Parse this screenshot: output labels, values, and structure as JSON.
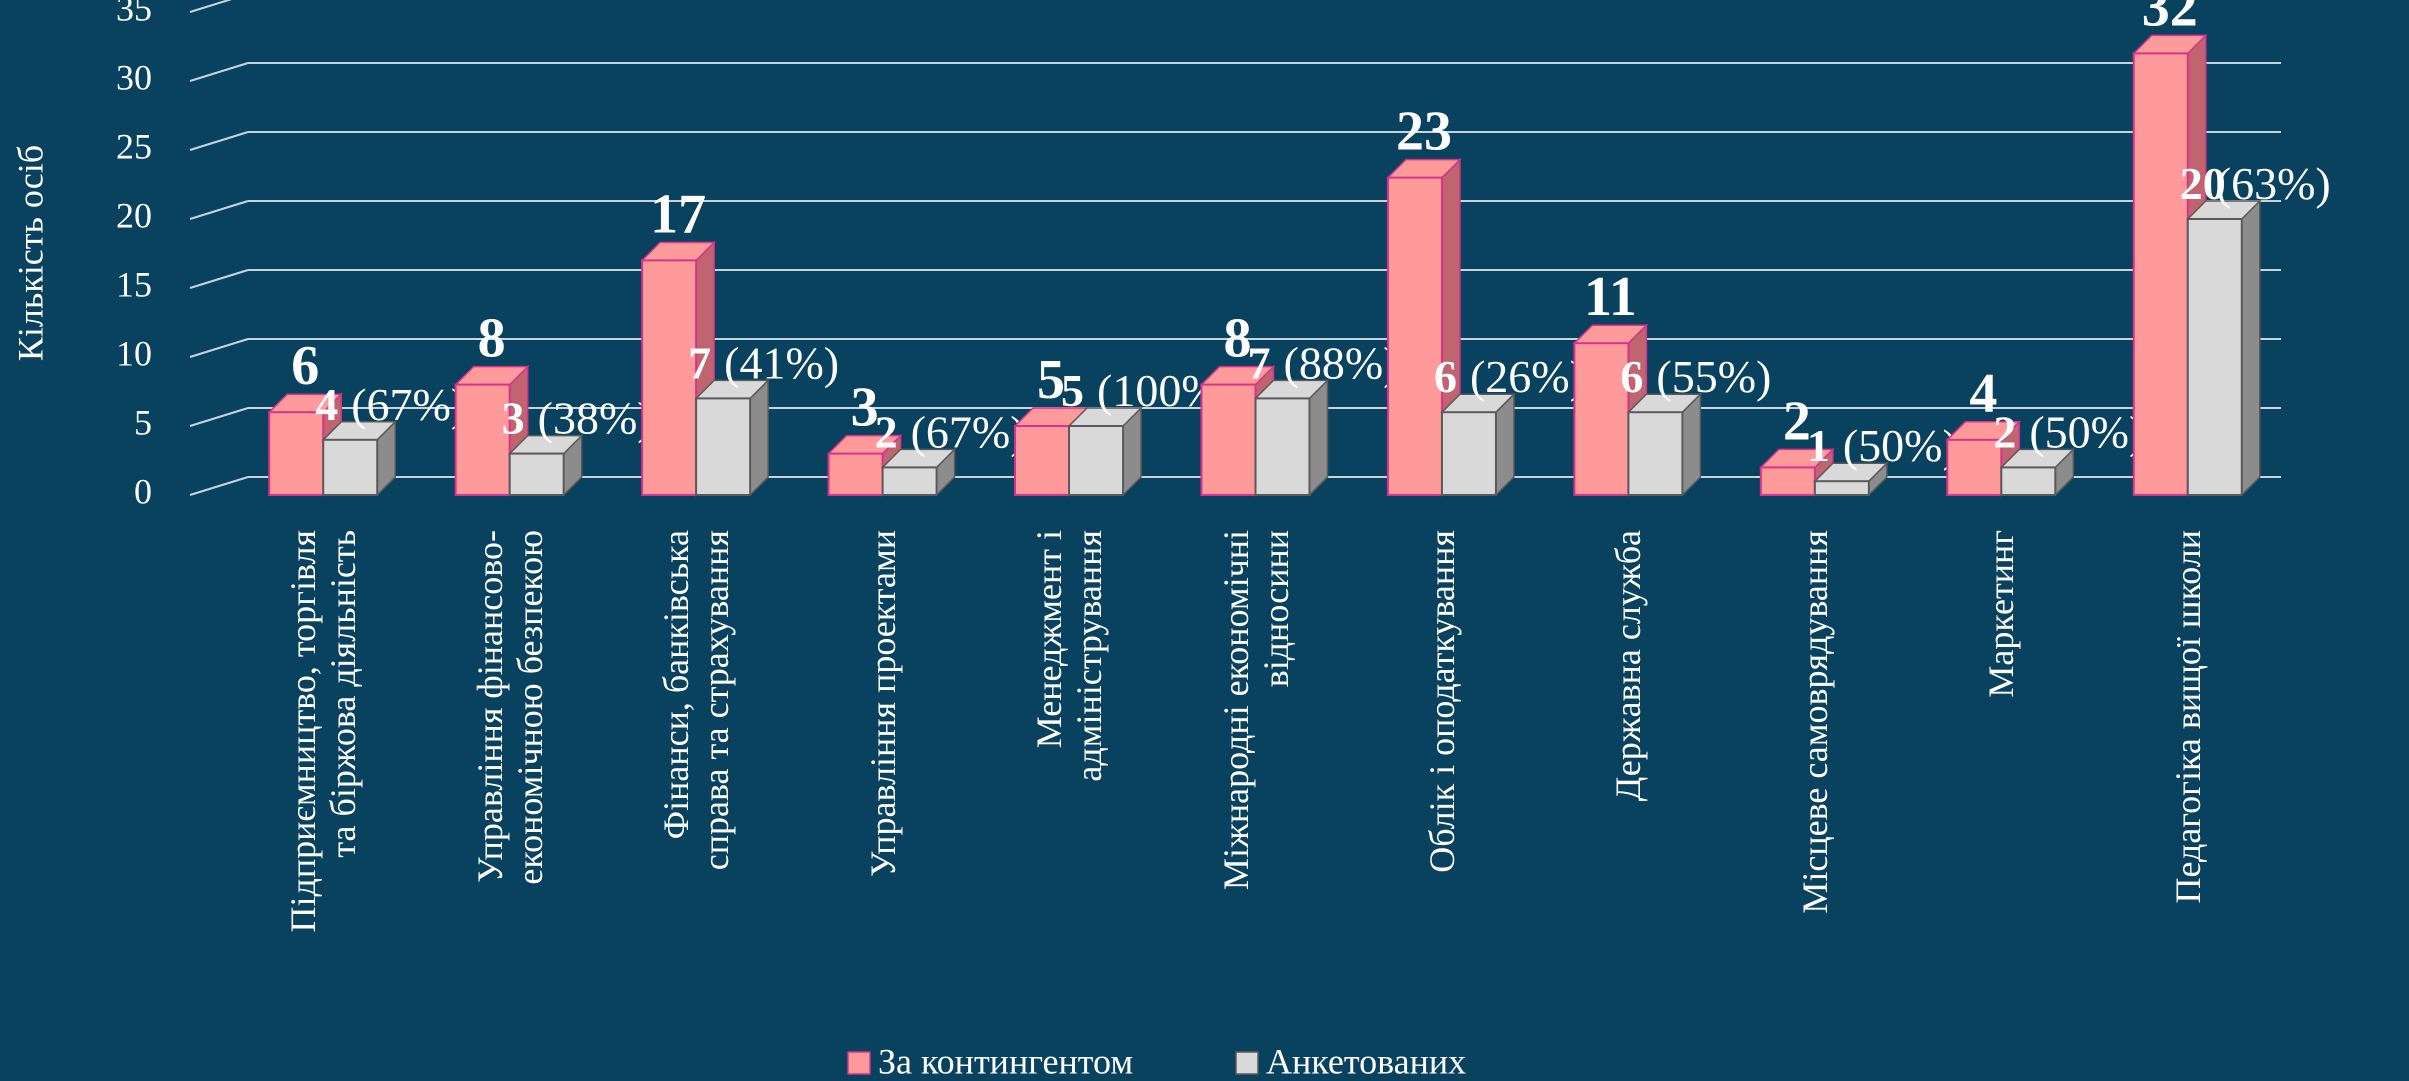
{
  "chart_data": {
    "type": "bar3d",
    "y_label": "Кількість осіб",
    "categories": [
      "Підприємництво, торгівля\nта біржова діяльність",
      "Управління фінансово-\nекономічною безпекою",
      "Фінанси, банківська\nсправа та страхування",
      "Управління проектами",
      "Менеджмент і\nадміністрування",
      "Міжнародні економічні\nвідносини",
      "Облік і оподаткування",
      "Державна служба",
      "Місцеве самоврядування",
      "Маркетинг",
      "Педагогіка вищої школи"
    ],
    "series": [
      {
        "name": "За контингентом",
        "color": "#ff9a9a",
        "values": [
          6,
          8,
          17,
          3,
          5,
          8,
          23,
          11,
          2,
          4,
          32
        ]
      },
      {
        "name": "Анкетованих",
        "color": "#d9d9d9",
        "values": [
          4,
          3,
          7,
          2,
          5,
          7,
          6,
          6,
          1,
          2,
          20
        ],
        "annotations": [
          "(67%)",
          "(38%)",
          "(41%)",
          "(67%)",
          "(100%)",
          "(88%)",
          "(26%)",
          "(55%)",
          "(50%)",
          "(50%)",
          "(63%)"
        ]
      }
    ],
    "ylim": [
      0,
      35
    ],
    "yticks": [
      0,
      5,
      10,
      15,
      20,
      25,
      30,
      35
    ],
    "grid": true,
    "legend": "bottom"
  }
}
